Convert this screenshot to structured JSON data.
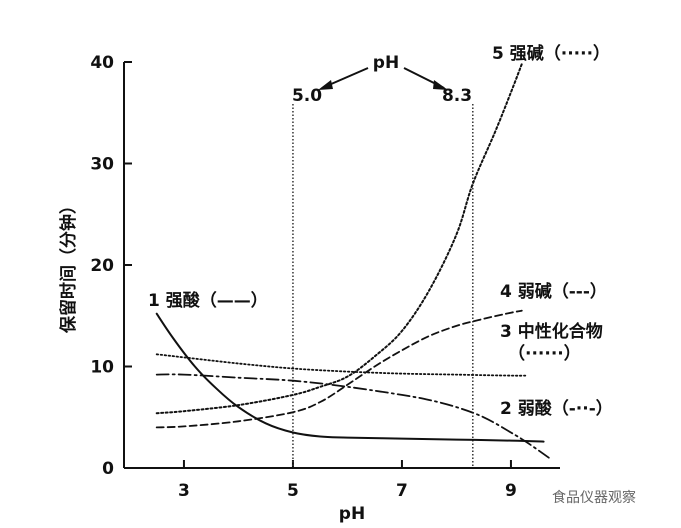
{
  "chart_data": {
    "type": "line",
    "xlabel": "pH",
    "ylabel": "保留时间（分钟）",
    "xlim": [
      1.9,
      9.9
    ],
    "ylim": [
      0,
      40
    ],
    "xticks": [
      3,
      5,
      7,
      9
    ],
    "yticks": [
      0,
      10,
      20,
      30,
      40
    ],
    "grid": false,
    "annotation": {
      "label": "pH",
      "left_value_label": "5.0",
      "right_value_label": "8.3",
      "vlines": [
        5.0,
        8.3
      ]
    },
    "series": [
      {
        "name": "1 强酸（——）",
        "style": "solid",
        "points": [
          [
            2.5,
            15.2
          ],
          [
            2.8,
            12.8
          ],
          [
            3.2,
            10.0
          ],
          [
            3.6,
            7.8
          ],
          [
            4.0,
            6.0
          ],
          [
            4.5,
            4.4
          ],
          [
            5.0,
            3.5
          ],
          [
            5.5,
            3.1
          ],
          [
            6.0,
            3.0
          ],
          [
            7.0,
            2.9
          ],
          [
            8.0,
            2.8
          ],
          [
            9.0,
            2.7
          ],
          [
            9.6,
            2.6
          ]
        ]
      },
      {
        "name": "2 弱酸（-··-）",
        "style": "dashdot",
        "points": [
          [
            2.5,
            9.2
          ],
          [
            3.0,
            9.2
          ],
          [
            4.0,
            8.9
          ],
          [
            5.0,
            8.6
          ],
          [
            6.0,
            8.0
          ],
          [
            7.0,
            7.2
          ],
          [
            7.5,
            6.7
          ],
          [
            8.0,
            6.0
          ],
          [
            8.5,
            5.0
          ],
          [
            9.0,
            3.5
          ],
          [
            9.3,
            2.5
          ],
          [
            9.7,
            1.0
          ]
        ]
      },
      {
        "name": "3 中性化合物",
        "legend_line2": "（······）",
        "style": "dotted",
        "points": [
          [
            2.5,
            11.2
          ],
          [
            3.0,
            10.9
          ],
          [
            4.0,
            10.3
          ],
          [
            5.0,
            9.8
          ],
          [
            6.0,
            9.5
          ],
          [
            7.0,
            9.3
          ],
          [
            8.0,
            9.2
          ],
          [
            9.0,
            9.1
          ],
          [
            9.3,
            9.1
          ]
        ]
      },
      {
        "name": "4 弱碱（---）",
        "style": "dashed",
        "points": [
          [
            2.5,
            4.0
          ],
          [
            3.0,
            4.1
          ],
          [
            4.0,
            4.6
          ],
          [
            5.0,
            5.5
          ],
          [
            5.5,
            6.5
          ],
          [
            6.0,
            8.2
          ],
          [
            6.5,
            10.0
          ],
          [
            7.0,
            11.6
          ],
          [
            7.5,
            13.0
          ],
          [
            8.0,
            14.0
          ],
          [
            8.5,
            14.7
          ],
          [
            9.0,
            15.3
          ],
          [
            9.2,
            15.5
          ]
        ]
      },
      {
        "name": "5 强碱（·····）",
        "style": "dotted-fine",
        "points": [
          [
            2.5,
            5.4
          ],
          [
            3.0,
            5.6
          ],
          [
            4.0,
            6.2
          ],
          [
            5.0,
            7.2
          ],
          [
            5.5,
            8.0
          ],
          [
            6.0,
            9.0
          ],
          [
            6.5,
            11.0
          ],
          [
            7.0,
            13.5
          ],
          [
            7.5,
            17.5
          ],
          [
            8.0,
            23.0
          ],
          [
            8.3,
            28.0
          ],
          [
            8.7,
            33.0
          ],
          [
            9.0,
            37.0
          ],
          [
            9.2,
            39.8
          ]
        ]
      }
    ]
  },
  "watermark": "食品仪器观察"
}
